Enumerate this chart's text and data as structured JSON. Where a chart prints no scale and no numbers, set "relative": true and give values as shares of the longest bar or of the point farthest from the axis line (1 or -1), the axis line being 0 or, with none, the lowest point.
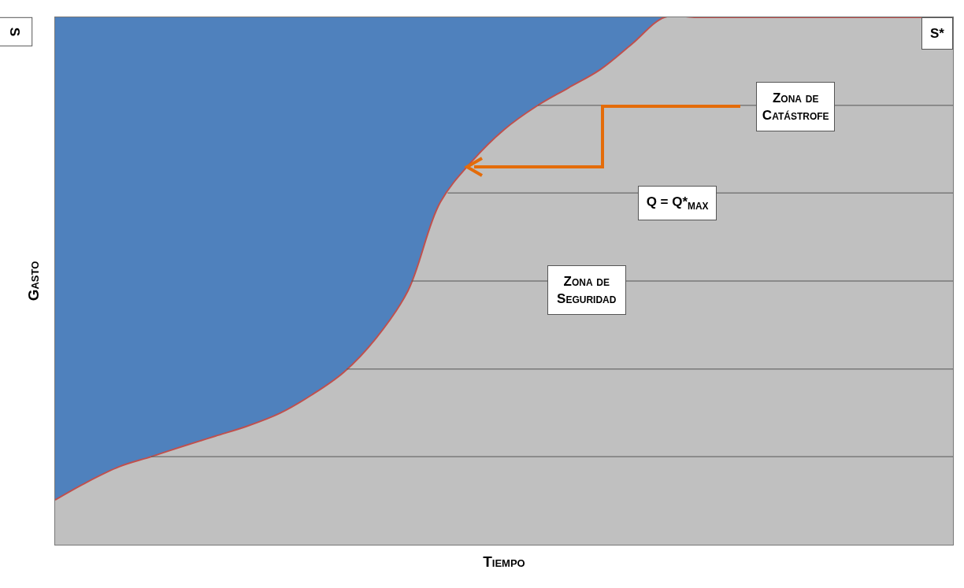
{
  "chart_data": {
    "type": "area",
    "relative": true,
    "xlabel": "Tiempo",
    "ylabel": "Gasto",
    "ref_lines": [
      {
        "axis": "y",
        "value": 0.167,
        "color": "#555555"
      },
      {
        "axis": "y",
        "value": 0.333,
        "color": "#555555"
      },
      {
        "axis": "y",
        "value": 0.5,
        "color": "#555555"
      },
      {
        "axis": "y",
        "value": 0.667,
        "color": "#555555"
      },
      {
        "axis": "y",
        "value": 0.833,
        "color": "#555555"
      }
    ],
    "legend": false,
    "color": "#c0c0c0",
    "categories": [
      null,
      null,
      null,
      null,
      null,
      null,
      null,
      null,
      null,
      null,
      null,
      null,
      null,
      null,
      null,
      null,
      null,
      null,
      null,
      null,
      null,
      null,
      null,
      null,
      null,
      null,
      null,
      null,
      null
    ],
    "values": [
      0.085,
      0.119,
      0.148,
      0.167,
      0.187,
      0.206,
      0.225,
      0.249,
      0.284,
      0.327,
      0.391,
      0.481,
      0.648,
      0.727,
      0.787,
      0.831,
      0.866,
      0.901,
      0.95,
      1,
      1,
      1,
      1,
      1,
      1,
      1,
      1,
      1,
      1
    ],
    "bands": [
      {
        "axis": "y",
        "from": 0,
        "to": 1,
        "color": "#4f81bd"
      }
    ],
    "annotations": [
      "S",
      "S*",
      "Zona de Catástrofe",
      "Q = Q*$_{MAX}$",
      "Zona de Seguridad"
    ]
  }
}
